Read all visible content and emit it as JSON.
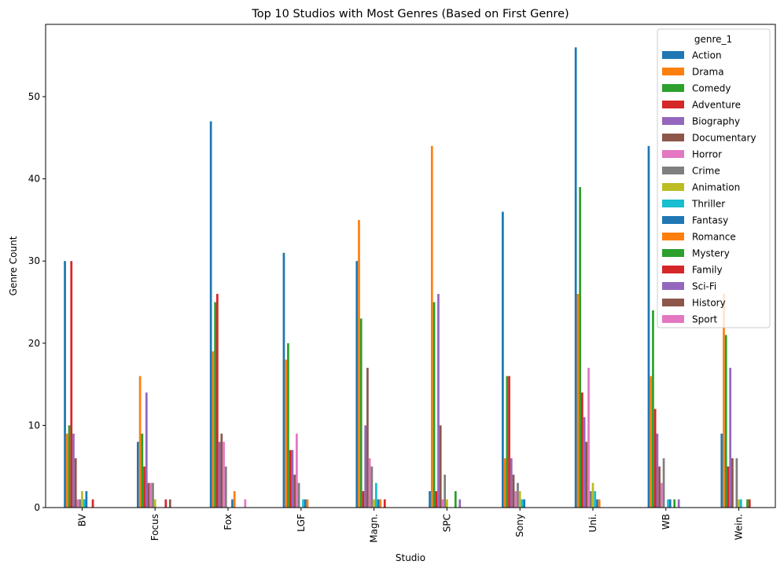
{
  "chart_data": {
    "type": "bar",
    "title": "Top 10 Studios with Most Genres (Based on First Genre)",
    "xlabel": "Studio",
    "ylabel": "Genre Count",
    "ylim": [
      0,
      58.8
    ],
    "yticks": [
      0,
      10,
      20,
      30,
      40,
      50
    ],
    "grid": false,
    "legend": {
      "title": "genre_1",
      "placement": "top-right"
    },
    "categories": [
      "BV",
      "Focus",
      "Fox",
      "LGF",
      "Magn.",
      "SPC",
      "Sony",
      "Uni.",
      "WB",
      "Wein."
    ],
    "series": [
      {
        "name": "Action",
        "color": "#1f77b4",
        "values": [
          30,
          8,
          47,
          31,
          30,
          2,
          36,
          56,
          44,
          9
        ]
      },
      {
        "name": "Drama",
        "color": "#ff7f0e",
        "values": [
          9,
          16,
          19,
          18,
          35,
          44,
          6,
          26,
          16,
          26
        ]
      },
      {
        "name": "Comedy",
        "color": "#2ca02c",
        "values": [
          10,
          9,
          25,
          20,
          23,
          25,
          16,
          39,
          24,
          21
        ]
      },
      {
        "name": "Adventure",
        "color": "#d62728",
        "values": [
          30,
          5,
          26,
          7,
          2,
          2,
          16,
          14,
          12,
          5
        ]
      },
      {
        "name": "Biography",
        "color": "#9467bd",
        "values": [
          9,
          14,
          8,
          7,
          10,
          26,
          6,
          11,
          9,
          17
        ]
      },
      {
        "name": "Documentary",
        "color": "#8c564b",
        "values": [
          6,
          3,
          9,
          4,
          17,
          10,
          4,
          8,
          5,
          6
        ]
      },
      {
        "name": "Horror",
        "color": "#e377c2",
        "values": [
          1,
          3,
          8,
          9,
          6,
          1,
          2,
          17,
          3,
          0
        ]
      },
      {
        "name": "Crime",
        "color": "#7f7f7f",
        "values": [
          1,
          3,
          5,
          3,
          5,
          4,
          3,
          2,
          6,
          6
        ]
      },
      {
        "name": "Animation",
        "color": "#bcbd22",
        "values": [
          2,
          1,
          0,
          0,
          1,
          1,
          2,
          3,
          0,
          1
        ]
      },
      {
        "name": "Thriller",
        "color": "#17becf",
        "values": [
          1,
          0,
          0,
          1,
          3,
          0,
          1,
          2,
          1,
          1
        ]
      },
      {
        "name": "Fantasy",
        "color": "#1f77b4",
        "values": [
          2,
          0,
          1,
          1,
          1,
          0,
          1,
          1,
          1,
          0
        ]
      },
      {
        "name": "Romance",
        "color": "#ff7f0e",
        "values": [
          0,
          0,
          2,
          1,
          1,
          0,
          0,
          1,
          0,
          0
        ]
      },
      {
        "name": "Mystery",
        "color": "#2ca02c",
        "values": [
          0,
          0,
          0,
          0,
          0,
          2,
          0,
          0,
          1,
          1
        ]
      },
      {
        "name": "Family",
        "color": "#d62728",
        "values": [
          1,
          1,
          0,
          0,
          1,
          0,
          0,
          0,
          0,
          1
        ]
      },
      {
        "name": "Sci-Fi",
        "color": "#9467bd",
        "values": [
          0,
          0,
          0,
          0,
          0,
          1,
          0,
          0,
          1,
          0
        ]
      },
      {
        "name": "History",
        "color": "#8c564b",
        "values": [
          0,
          1,
          0,
          0,
          0,
          0,
          0,
          0,
          0,
          0
        ]
      },
      {
        "name": "Sport",
        "color": "#e377c2",
        "values": [
          0,
          0,
          1,
          0,
          0,
          0,
          0,
          0,
          0,
          0
        ]
      }
    ]
  }
}
